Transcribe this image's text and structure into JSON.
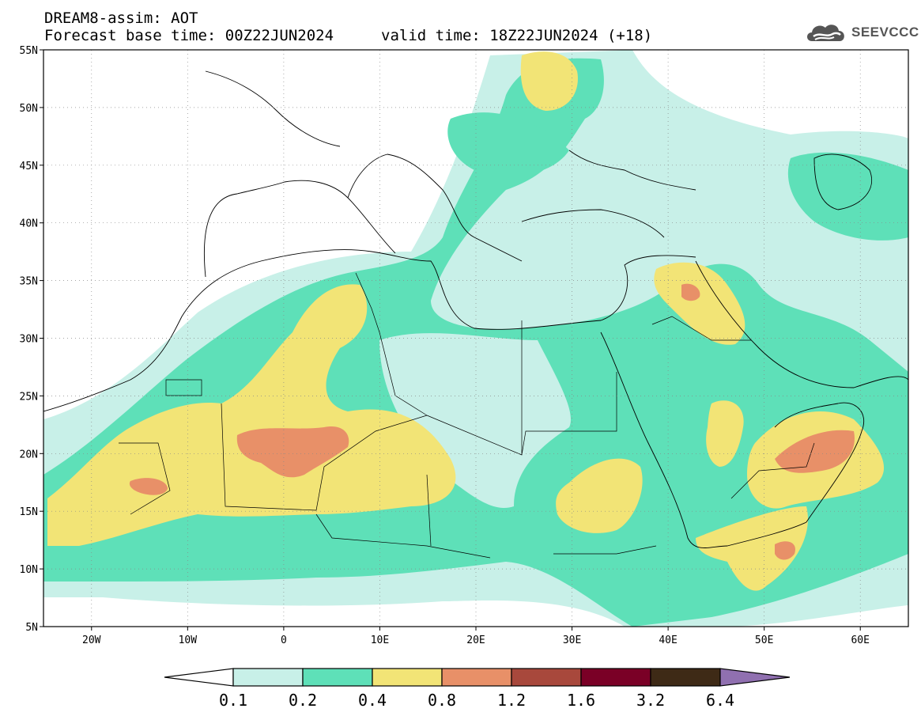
{
  "header": {
    "title": "DREAM8-assim: AOT",
    "base_time": "Forecast base time: 00Z22JUN2024",
    "valid_time": "valid time: 18Z22JUN2024 (+18)"
  },
  "logo": {
    "text": "SEEVCCC",
    "icon": "cloud-icon"
  },
  "map": {
    "lon_range": [
      -25,
      65
    ],
    "lat_range": [
      5,
      55
    ],
    "lat_labels": [
      "55N",
      "50N",
      "45N",
      "40N",
      "35N",
      "30N",
      "25N",
      "20N",
      "15N",
      "10N",
      "5N"
    ],
    "lon_labels": [
      "20W",
      "10W",
      "0",
      "10E",
      "20E",
      "30E",
      "40E",
      "50E",
      "60E"
    ],
    "grid": true
  },
  "colorbar": {
    "labels": [
      "0.1",
      "0.2",
      "0.4",
      "0.8",
      "1.2",
      "1.6",
      "3.2",
      "6.4"
    ],
    "colors": [
      "#ffffff",
      "#c8f0e8",
      "#5ee0b8",
      "#f2e476",
      "#e89068",
      "#a8483c",
      "#7a0026",
      "#3e2a16",
      "#9070b0"
    ]
  }
}
